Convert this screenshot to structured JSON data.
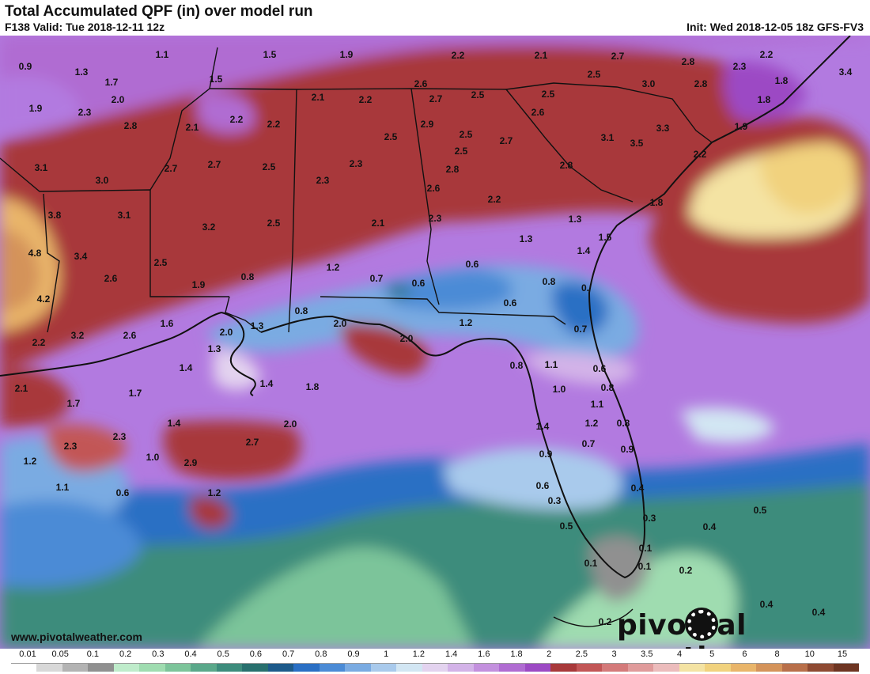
{
  "header": {
    "title": "Total Accumulated QPF (in) over model run",
    "valid": "F138 Valid: Tue 2018-12-11 12z",
    "init": "Init: Wed 2018-12-05 18z GFS-FV3"
  },
  "footer": {
    "website": "www.pivotalweather.com",
    "brand_left": "pivo",
    "brand_right": "al weather"
  },
  "legend": {
    "ticks": [
      "0.01",
      "0.05",
      "0.1",
      "0.2",
      "0.3",
      "0.4",
      "0.5",
      "0.6",
      "0.7",
      "0.8",
      "0.9",
      "1",
      "1.2",
      "1.4",
      "1.6",
      "1.8",
      "2",
      "2.5",
      "3",
      "3.5",
      "4",
      "5",
      "6",
      "8",
      "10",
      "15"
    ],
    "colors": [
      "#ffffff",
      "#d8d8d8",
      "#b3b3b3",
      "#909090",
      "#bfeccb",
      "#9fdcb0",
      "#7cc49a",
      "#5aa88a",
      "#3d8c7c",
      "#28706e",
      "#1d5a8a",
      "#2a6fc4",
      "#4b8bd6",
      "#7aabe2",
      "#a9caec",
      "#d2e6f3",
      "#e3d3ef",
      "#d3b3e8",
      "#c390de",
      "#b06cd2",
      "#9c4ac4",
      "#a8393a",
      "#c25656",
      "#d47a7a",
      "#e09b9b",
      "#ecbcbc",
      "#f4e3a3",
      "#f1d27e",
      "#e9b56a",
      "#d4935a",
      "#b86f4a",
      "#8e4a32",
      "#6e3522"
    ]
  },
  "labels": [
    [
      "0.9",
      32,
      88
    ],
    [
      "1.1",
      205,
      73
    ],
    [
      "1.5",
      341,
      73
    ],
    [
      "1.9",
      438,
      73
    ],
    [
      "2.2",
      579,
      74
    ],
    [
      "2.1",
      684,
      74
    ],
    [
      "2.7",
      781,
      75
    ],
    [
      "2.8",
      870,
      82
    ],
    [
      "2.3",
      935,
      88
    ],
    [
      "2.2",
      969,
      73
    ],
    [
      "3.4",
      1069,
      95
    ],
    [
      "1.3",
      103,
      95
    ],
    [
      "1.7",
      141,
      108
    ],
    [
      "1.5",
      273,
      104
    ],
    [
      "2.6",
      532,
      110
    ],
    [
      "2.5",
      751,
      98
    ],
    [
      "3.0",
      820,
      110
    ],
    [
      "2.8",
      886,
      110
    ],
    [
      "1.8",
      988,
      106
    ],
    [
      "1.9",
      45,
      141
    ],
    [
      "2.0",
      149,
      130
    ],
    [
      "2.3",
      107,
      146
    ],
    [
      "2.1",
      402,
      127
    ],
    [
      "2.2",
      462,
      130
    ],
    [
      "2.7",
      551,
      129
    ],
    [
      "2.5",
      604,
      124
    ],
    [
      "2.5",
      693,
      123
    ],
    [
      "1.8",
      966,
      130
    ],
    [
      "2.8",
      165,
      163
    ],
    [
      "2.1",
      243,
      165
    ],
    [
      "2.2",
      299,
      155
    ],
    [
      "2.2",
      346,
      161
    ],
    [
      "2.9",
      540,
      161
    ],
    [
      "2.5",
      589,
      174
    ],
    [
      "2.6",
      680,
      146
    ],
    [
      "3.3",
      838,
      166
    ],
    [
      "1.9",
      937,
      164
    ],
    [
      "3.1",
      52,
      216
    ],
    [
      "3.0",
      129,
      232
    ],
    [
      "2.7",
      216,
      217
    ],
    [
      "2.7",
      271,
      212
    ],
    [
      "2.5",
      340,
      215
    ],
    [
      "2.3",
      450,
      211
    ],
    [
      "2.5",
      494,
      177
    ],
    [
      "2.5",
      583,
      195
    ],
    [
      "2.7",
      640,
      182
    ],
    [
      "3.1",
      768,
      178
    ],
    [
      "3.5",
      805,
      185
    ],
    [
      "2.2",
      885,
      199
    ],
    [
      "2.3",
      408,
      232
    ],
    [
      "2.8",
      572,
      218
    ],
    [
      "2.8",
      716,
      213
    ],
    [
      "2.6",
      548,
      242
    ],
    [
      "3.8",
      69,
      276
    ],
    [
      "3.1",
      157,
      276
    ],
    [
      "3.2",
      264,
      291
    ],
    [
      "2.5",
      346,
      286
    ],
    [
      "2.1",
      478,
      286
    ],
    [
      "2.3",
      550,
      280
    ],
    [
      "2.2",
      625,
      256
    ],
    [
      "1.3",
      727,
      281
    ],
    [
      "1.8",
      830,
      260
    ],
    [
      "4.8",
      44,
      324
    ],
    [
      "3.4",
      102,
      328
    ],
    [
      "2.5",
      203,
      336
    ],
    [
      "1.2",
      421,
      342
    ],
    [
      "1.3",
      665,
      306
    ],
    [
      "1.5",
      765,
      304
    ],
    [
      "1.4",
      738,
      321
    ],
    [
      "0.6",
      597,
      338
    ],
    [
      "2.6",
      140,
      356
    ],
    [
      "1.9",
      251,
      364
    ],
    [
      "0.8",
      313,
      354
    ],
    [
      "0.7",
      476,
      356
    ],
    [
      "0.6",
      529,
      362
    ],
    [
      "0.8",
      694,
      360
    ],
    [
      "0.",
      740,
      368
    ],
    [
      "4.2",
      55,
      382
    ],
    [
      "1.6",
      211,
      413
    ],
    [
      "0.8",
      381,
      397
    ],
    [
      "2.0",
      430,
      413
    ],
    [
      "1.3",
      325,
      416
    ],
    [
      "0.6",
      645,
      387
    ],
    [
      "1.2",
      589,
      412
    ],
    [
      "0.7",
      734,
      420
    ],
    [
      "2.2",
      49,
      437
    ],
    [
      "3.2",
      98,
      428
    ],
    [
      "2.6",
      164,
      428
    ],
    [
      "2.0",
      286,
      424
    ],
    [
      "1.3",
      271,
      445
    ],
    [
      "2.0",
      514,
      432
    ],
    [
      "2.1",
      27,
      495
    ],
    [
      "1.4",
      235,
      469
    ],
    [
      "1.4",
      337,
      489
    ],
    [
      "1.8",
      395,
      493
    ],
    [
      "0.8",
      653,
      466
    ],
    [
      "1.1",
      697,
      465
    ],
    [
      "0.6",
      758,
      470
    ],
    [
      "1.0",
      707,
      496
    ],
    [
      "0.8",
      768,
      494
    ],
    [
      "1.7",
      93,
      514
    ],
    [
      "1.7",
      171,
      501
    ],
    [
      "1.1",
      755,
      515
    ],
    [
      "2.3",
      151,
      556
    ],
    [
      "1.4",
      220,
      539
    ],
    [
      "2.0",
      367,
      540
    ],
    [
      "1.4",
      686,
      543
    ],
    [
      "1.2",
      748,
      539
    ],
    [
      "0.8",
      788,
      539
    ],
    [
      "2.3",
      89,
      568
    ],
    [
      "2.7",
      319,
      563
    ],
    [
      "1.0",
      193,
      582
    ],
    [
      "2.9",
      241,
      589
    ],
    [
      "0.9",
      690,
      578
    ],
    [
      "0.7",
      744,
      565
    ],
    [
      "0.9",
      793,
      572
    ],
    [
      "1.2",
      38,
      587
    ],
    [
      "1.1",
      79,
      620
    ],
    [
      "0.6",
      155,
      627
    ],
    [
      "1.2",
      271,
      627
    ],
    [
      "0.6",
      686,
      618
    ],
    [
      "0.4",
      806,
      621
    ],
    [
      "0.3",
      701,
      637
    ],
    [
      "0.3",
      821,
      659
    ],
    [
      "0.5",
      961,
      649
    ],
    [
      "0.4",
      897,
      670
    ],
    [
      "0.5",
      716,
      669
    ],
    [
      "0.1",
      816,
      697
    ],
    [
      "0.1",
      747,
      716
    ],
    [
      "0.1",
      815,
      720
    ],
    [
      "0.2",
      867,
      725
    ],
    [
      "0.4",
      969,
      768
    ],
    [
      "0.4",
      1035,
      778
    ],
    [
      "0.2",
      765,
      790
    ]
  ]
}
